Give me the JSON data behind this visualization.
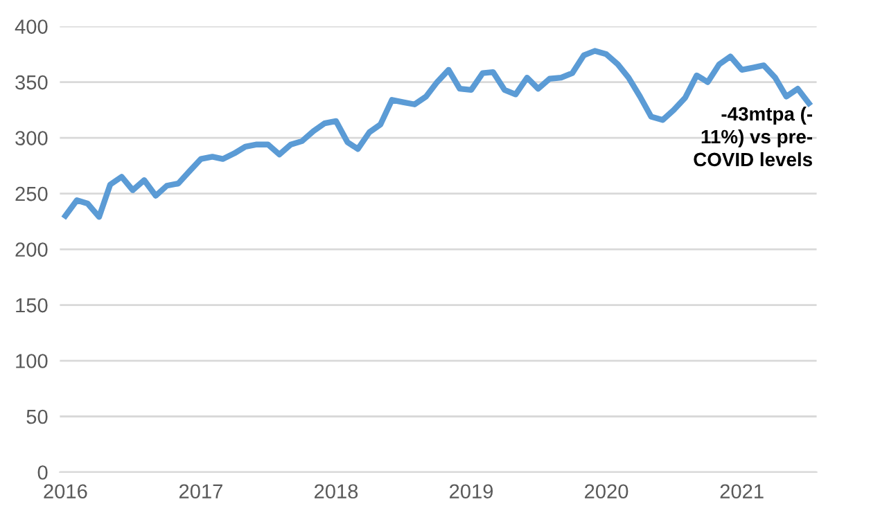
{
  "chart_data": {
    "type": "line",
    "x": [
      "2016-01",
      "2016-02",
      "2016-03",
      "2016-04",
      "2016-05",
      "2016-06",
      "2016-07",
      "2016-08",
      "2016-09",
      "2016-10",
      "2016-11",
      "2016-12",
      "2017-01",
      "2017-02",
      "2017-03",
      "2017-04",
      "2017-05",
      "2017-06",
      "2017-07",
      "2017-08",
      "2017-09",
      "2017-10",
      "2017-11",
      "2017-12",
      "2018-01",
      "2018-02",
      "2018-03",
      "2018-04",
      "2018-05",
      "2018-06",
      "2018-07",
      "2018-08",
      "2018-09",
      "2018-10",
      "2018-11",
      "2018-12",
      "2019-01",
      "2019-02",
      "2019-03",
      "2019-04",
      "2019-05",
      "2019-06",
      "2019-07",
      "2019-08",
      "2019-09",
      "2019-10",
      "2019-11",
      "2019-12",
      "2020-01",
      "2020-02",
      "2020-03",
      "2020-04",
      "2020-05",
      "2020-06",
      "2020-07",
      "2020-08",
      "2020-09",
      "2020-10",
      "2020-11",
      "2020-12",
      "2021-01",
      "2021-02",
      "2021-03",
      "2021-04",
      "2021-05",
      "2021-06",
      "2021-07"
    ],
    "series": [
      {
        "color": "#5b9bd5",
        "values": [
          230,
          244,
          241,
          229,
          258,
          265,
          253,
          262,
          248,
          257,
          259,
          270,
          281,
          283,
          281,
          286,
          292,
          294,
          294,
          285,
          294,
          297,
          306,
          313,
          315,
          296,
          290,
          305,
          312,
          334,
          332,
          330,
          337,
          350,
          361,
          344,
          343,
          358,
          359,
          343,
          339,
          354,
          344,
          353,
          354,
          358,
          374,
          378,
          375,
          366,
          354,
          337,
          319,
          316,
          325,
          336,
          356,
          350,
          366,
          373,
          361,
          363,
          365,
          354,
          337,
          344,
          331
        ]
      }
    ],
    "xlim": [
      "2015-12-17",
      "2021-07-22"
    ],
    "xticks": [
      {
        "value": "2016-01",
        "label": "2016"
      },
      {
        "value": "2017-01",
        "label": "2017"
      },
      {
        "value": "2018-01",
        "label": "2018"
      },
      {
        "value": "2019-01",
        "label": "2019"
      },
      {
        "value": "2020-01",
        "label": "2020"
      },
      {
        "value": "2021-01",
        "label": "2021"
      }
    ],
    "ylim": [
      0,
      400
    ],
    "yticks": [
      0,
      50,
      100,
      150,
      200,
      250,
      300,
      350,
      400
    ],
    "grid": "y",
    "marker": "none",
    "line_style": "solid",
    "annotations": [
      "-43mtpa (-\n11%) vs pre-\nCOVID levels"
    ]
  }
}
